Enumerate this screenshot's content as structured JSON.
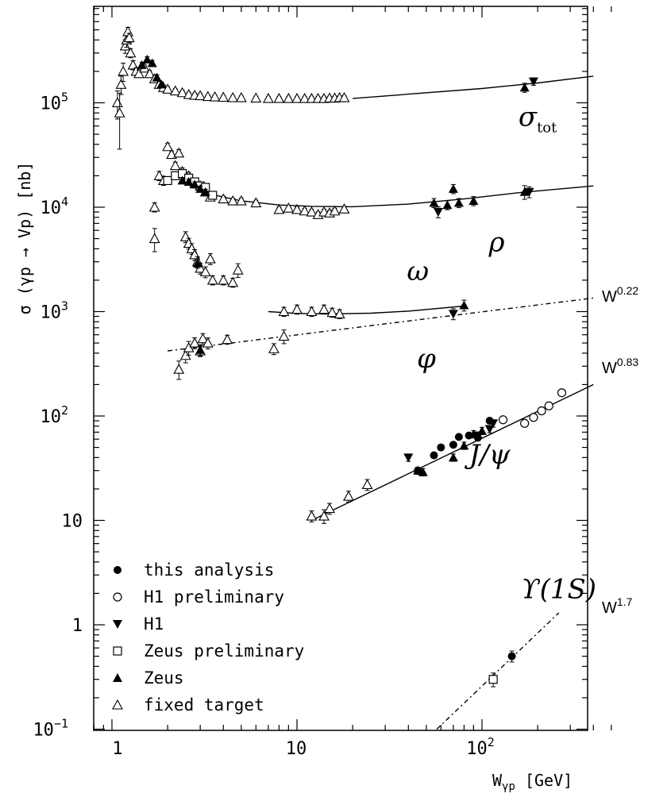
{
  "chart_data": {
    "type": "scatter",
    "title": "",
    "xlabel": "W",
    "xlabel_sub": "γp",
    "xlabel_unit": "[GeV]",
    "ylabel_prefix": "σ (γp",
    "ylabel_arrow": "→",
    "ylabel_suffix": "Vp)  [nb]",
    "x_log": true,
    "y_log": true,
    "xlim": [
      0.8,
      500
    ],
    "ylim": [
      0.1,
      800000
    ],
    "grid": false,
    "legend_position": "bottom-left",
    "x_ticks": [
      {
        "v": 1,
        "t": "1"
      },
      {
        "v": 10,
        "t": "10"
      },
      {
        "v": 100,
        "t": "10",
        "exp": "2"
      }
    ],
    "y_ticks": [
      {
        "v": 0.1,
        "t": "10",
        "exp": "−1"
      },
      {
        "v": 1,
        "t": "1"
      },
      {
        "v": 10,
        "t": "10"
      },
      {
        "v": 100,
        "t": "10",
        "exp": "2"
      },
      {
        "v": 1000,
        "t": "10",
        "exp": "3"
      },
      {
        "v": 10000,
        "t": "10",
        "exp": "4"
      },
      {
        "v": 100000,
        "t": "10",
        "exp": "5"
      }
    ],
    "process_labels": [
      {
        "text": "σ",
        "sub": "tot",
        "x": 200,
        "y": 60000
      },
      {
        "text": "ρ",
        "x": 120,
        "y": 3800
      },
      {
        "text": "ω",
        "x": 45,
        "y": 2000
      },
      {
        "text": "φ",
        "x": 50,
        "y": 290
      },
      {
        "text": "J/ψ",
        "x": 110,
        "y": 35
      },
      {
        "text": "ϒ(1S)",
        "x": 260,
        "y": 1.8
      }
    ],
    "power_labels": [
      {
        "text": "W",
        "exp": "0.22",
        "y": 1500
      },
      {
        "text": "W",
        "exp": "0.83",
        "y": 200
      },
      {
        "text": "W",
        "exp": "1.7",
        "y": 3
      }
    ],
    "legend": [
      {
        "marker": "filled-circle",
        "label": "this analysis"
      },
      {
        "marker": "open-circle",
        "label": "H1 preliminary"
      },
      {
        "marker": "filled-triangle-down",
        "label": "H1"
      },
      {
        "marker": "open-square",
        "label": "Zeus preliminary"
      },
      {
        "marker": "filled-triangle-up",
        "label": "Zeus"
      },
      {
        "marker": "open-triangle-up",
        "label": "fixed target"
      }
    ],
    "curves": [
      {
        "name": "sigma_tot",
        "style": "solid",
        "points": [
          [
            20,
            110000
          ],
          [
            40,
            121000
          ],
          [
            100,
            137000
          ],
          [
            200,
            155000
          ],
          [
            400,
            180000
          ]
        ]
      },
      {
        "name": "rho",
        "style": "solid",
        "points": [
          [
            3,
            14000
          ],
          [
            5,
            11500
          ],
          [
            8,
            10500
          ],
          [
            12,
            10200
          ],
          [
            20,
            10100
          ],
          [
            40,
            10700
          ],
          [
            80,
            12000
          ],
          [
            160,
            13800
          ],
          [
            400,
            16000
          ]
        ]
      },
      {
        "name": "omega",
        "style": "solid",
        "points": [
          [
            7,
            1000
          ],
          [
            10,
            960
          ],
          [
            15,
            950
          ],
          [
            25,
            965
          ],
          [
            40,
            1010
          ],
          [
            80,
            1130
          ]
        ]
      },
      {
        "name": "phi",
        "style": "dashdot",
        "points": [
          [
            2,
            420
          ],
          [
            400,
            1350
          ]
        ]
      },
      {
        "name": "jpsi",
        "style": "solid",
        "points": [
          [
            12,
            10
          ],
          [
            400,
            200
          ]
        ]
      },
      {
        "name": "upsilon",
        "style": "dashdot",
        "points": [
          [
            57,
            0.1
          ],
          [
            260,
            1.3
          ]
        ]
      }
    ],
    "series": [
      {
        "marker": "open-triangle-up",
        "points": [
          [
            1.07,
            100000,
            0.3
          ],
          [
            1.1,
            80000,
            0.55
          ],
          [
            1.12,
            150000,
            0.2
          ],
          [
            1.15,
            200000,
            0.2
          ],
          [
            1.18,
            350000,
            0.15
          ],
          [
            1.2,
            400000,
            0.15
          ],
          [
            1.22,
            480000,
            0.1
          ],
          [
            1.24,
            420000,
            0.1
          ],
          [
            1.26,
            300000,
            0.1
          ],
          [
            1.3,
            230000,
            0.1
          ],
          [
            1.35,
            200000,
            0.08
          ],
          [
            1.4,
            190000,
            0.08
          ],
          [
            1.5,
            215000,
            0.07
          ],
          [
            1.6,
            190000,
            0.07
          ],
          [
            1.7,
            170000,
            0.07
          ],
          [
            1.8,
            150000,
            0.06
          ],
          [
            1.9,
            140000,
            0.06
          ],
          [
            2.0,
            135000,
            0.06
          ],
          [
            2.2,
            130000,
            0.05
          ],
          [
            2.4,
            125000,
            0.05
          ],
          [
            2.6,
            120000,
            0.05
          ],
          [
            2.8,
            118000,
            0.05
          ],
          [
            3.0,
            117000,
            0.05
          ],
          [
            3.3,
            115000,
            0.04
          ],
          [
            3.6,
            114000,
            0.04
          ],
          [
            4.0,
            113000,
            0.04
          ],
          [
            4.5,
            112000,
            0.04
          ],
          [
            5.0,
            112000,
            0.04
          ],
          [
            6.0,
            111000,
            0.04
          ],
          [
            7.0,
            110000,
            0.04
          ],
          [
            8.0,
            110000,
            0.04
          ],
          [
            9.0,
            110000,
            0.04
          ],
          [
            10.0,
            110000,
            0.04
          ],
          [
            11.0,
            110000,
            0.04
          ],
          [
            12.0,
            110000,
            0.04
          ],
          [
            13.0,
            110000,
            0.04
          ],
          [
            14.0,
            110000,
            0.04
          ],
          [
            15.0,
            111000,
            0.04
          ],
          [
            16.0,
            111000,
            0.04
          ],
          [
            17.0,
            112000,
            0.04
          ],
          [
            18.0,
            112000,
            0.04
          ]
        ]
      },
      {
        "marker": "filled-triangle-up",
        "points": [
          [
            1.45,
            230000,
            0.06
          ],
          [
            1.55,
            260000,
            0.06
          ],
          [
            1.65,
            240000,
            0.06
          ],
          [
            1.75,
            175000,
            0.06
          ],
          [
            1.85,
            150000,
            0.06
          ]
        ]
      },
      {
        "marker": "filled-triangle-up",
        "points": [
          [
            170,
            140000,
            0.1
          ]
        ]
      },
      {
        "marker": "filled-triangle-down",
        "points": [
          [
            190,
            160000,
            0.08
          ]
        ]
      },
      {
        "marker": "open-triangle-up",
        "points": [
          [
            1.7,
            10000,
            0.1
          ],
          [
            1.8,
            20000,
            0.1
          ],
          [
            1.9,
            18000,
            0.1
          ],
          [
            2.0,
            38000,
            0.08
          ],
          [
            2.1,
            32000,
            0.08
          ],
          [
            2.2,
            25000,
            0.08
          ],
          [
            2.3,
            33000,
            0.08
          ],
          [
            2.4,
            22000,
            0.08
          ],
          [
            2.6,
            20000,
            0.08
          ],
          [
            2.8,
            17000,
            0.08
          ],
          [
            3.0,
            16000,
            0.08
          ],
          [
            3.2,
            14000,
            0.08
          ],
          [
            3.4,
            12500,
            0.08
          ],
          [
            4.0,
            12000,
            0.06
          ],
          [
            4.5,
            11500,
            0.06
          ],
          [
            5.0,
            11500,
            0.06
          ],
          [
            6.0,
            11000,
            0.06
          ],
          [
            8.0,
            9500,
            0.06
          ],
          [
            9.0,
            9800,
            0.06
          ],
          [
            10.0,
            9500,
            0.06
          ],
          [
            11.0,
            9200,
            0.06
          ],
          [
            12.0,
            9000,
            0.06
          ],
          [
            13.0,
            8500,
            0.06
          ],
          [
            14.0,
            9000,
            0.06
          ],
          [
            15.0,
            8800,
            0.06
          ],
          [
            16.0,
            9200,
            0.06
          ],
          [
            18.0,
            9600,
            0.06
          ]
        ]
      },
      {
        "marker": "open-square",
        "points": [
          [
            2.0,
            18000,
            0.06
          ],
          [
            2.2,
            20000,
            0.06
          ],
          [
            2.4,
            21000,
            0.06
          ],
          [
            2.6,
            19000,
            0.06
          ],
          [
            2.8,
            17500,
            0.06
          ],
          [
            3.0,
            16000,
            0.06
          ],
          [
            3.2,
            15500,
            0.06
          ],
          [
            3.5,
            13000,
            0.06
          ]
        ]
      },
      {
        "marker": "filled-triangle-up",
        "points": [
          [
            2.4,
            18000,
            0.06
          ],
          [
            2.6,
            17500,
            0.06
          ],
          [
            2.8,
            16500,
            0.06
          ],
          [
            3.0,
            15000,
            0.06
          ],
          [
            3.2,
            14000,
            0.06
          ]
        ]
      },
      {
        "marker": "filled-triangle-down",
        "points": [
          [
            58,
            9000,
            0.12
          ],
          [
            180,
            14000,
            0.12
          ]
        ]
      },
      {
        "marker": "filled-triangle-up",
        "points": [
          [
            55,
            11000,
            0.1
          ],
          [
            65,
            10500,
            0.1
          ],
          [
            70,
            15000,
            0.1
          ],
          [
            75,
            11000,
            0.1
          ],
          [
            90,
            11500,
            0.1
          ],
          [
            170,
            14000,
            0.15
          ]
        ]
      },
      {
        "marker": "open-triangle-up",
        "points": [
          [
            1.7,
            5000,
            0.25
          ],
          [
            2.5,
            5200,
            0.12
          ],
          [
            2.6,
            4500,
            0.12
          ],
          [
            2.7,
            4000,
            0.12
          ],
          [
            2.8,
            3500,
            0.12
          ],
          [
            2.9,
            3000,
            0.12
          ],
          [
            3.0,
            2600,
            0.12
          ],
          [
            3.2,
            2400,
            0.12
          ],
          [
            3.4,
            3200,
            0.12
          ],
          [
            3.5,
            2000,
            0.1
          ],
          [
            4.0,
            2000,
            0.1
          ],
          [
            4.5,
            1900,
            0.1
          ],
          [
            4.8,
            2500,
            0.15
          ]
        ]
      },
      {
        "marker": "filled-triangle-up",
        "points": [
          [
            2.9,
            2900,
            0.1
          ]
        ]
      },
      {
        "marker": "open-triangle-up",
        "points": [
          [
            8.5,
            1000,
            0.1
          ],
          [
            10.0,
            1050,
            0.1
          ],
          [
            12.0,
            1000,
            0.1
          ],
          [
            14.0,
            1050,
            0.1
          ],
          [
            15.5,
            980,
            0.1
          ],
          [
            17.0,
            950,
            0.1
          ]
        ]
      },
      {
        "marker": "filled-triangle-down",
        "points": [
          [
            70,
            950,
            0.12
          ]
        ]
      },
      {
        "marker": "filled-triangle-up",
        "points": [
          [
            80,
            1150,
            0.12
          ]
        ]
      },
      {
        "marker": "open-triangle-up",
        "points": [
          [
            2.3,
            280,
            0.2
          ],
          [
            2.5,
            380,
            0.15
          ],
          [
            2.6,
            450,
            0.15
          ],
          [
            2.8,
            500,
            0.12
          ],
          [
            3.0,
            420,
            0.12
          ],
          [
            3.1,
            550,
            0.12
          ],
          [
            3.3,
            500,
            0.12
          ],
          [
            4.2,
            540,
            0.1
          ],
          [
            7.5,
            440,
            0.12
          ],
          [
            8.5,
            580,
            0.15
          ]
        ]
      },
      {
        "marker": "filled-triangle-up",
        "points": [
          [
            3.0,
            430,
            0.12
          ]
        ]
      },
      {
        "marker": "open-triangle-up",
        "points": [
          [
            12,
            11,
            0.12
          ],
          [
            14,
            11,
            0.15
          ],
          [
            15,
            13,
            0.12
          ],
          [
            19,
            17,
            0.12
          ],
          [
            24,
            22,
            0.12
          ]
        ]
      },
      {
        "marker": "filled-triangle-up",
        "points": [
          [
            45,
            30,
            0.08
          ],
          [
            48,
            29,
            0.08
          ],
          [
            70,
            40,
            0.08
          ],
          [
            80,
            52,
            0.08
          ],
          [
            90,
            67,
            0.08
          ],
          [
            100,
            72,
            0.08
          ]
        ]
      },
      {
        "marker": "filled-triangle-down",
        "points": [
          [
            40,
            40,
            0.08
          ],
          [
            95,
            65,
            0.08
          ],
          [
            110,
            75,
            0.08
          ],
          [
            115,
            85,
            0.08
          ]
        ]
      },
      {
        "marker": "filled-circle",
        "points": [
          [
            45,
            30,
            0.06
          ],
          [
            55,
            42,
            0.06
          ],
          [
            60,
            50,
            0.06
          ],
          [
            70,
            53,
            0.06
          ],
          [
            75,
            63,
            0.06
          ],
          [
            85,
            65,
            0.06
          ],
          [
            95,
            62,
            0.06
          ],
          [
            110,
            90,
            0.06
          ]
        ]
      },
      {
        "marker": "open-circle",
        "points": [
          [
            130,
            92,
            0.07
          ],
          [
            170,
            85,
            0.07
          ],
          [
            190,
            97,
            0.07
          ],
          [
            210,
            112,
            0.07
          ],
          [
            230,
            125,
            0.07
          ],
          [
            270,
            167,
            0.07
          ]
        ]
      },
      {
        "marker": "open-square",
        "points": [
          [
            115,
            0.3,
            0.15
          ]
        ]
      },
      {
        "marker": "filled-circle",
        "points": [
          [
            145,
            0.5,
            0.12
          ]
        ]
      }
    ]
  }
}
